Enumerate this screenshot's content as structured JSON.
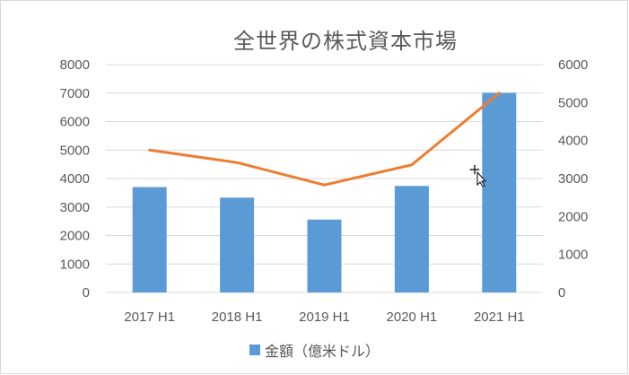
{
  "chart_data": {
    "type": "bar",
    "title": "全世界の株式資本市場",
    "categories": [
      "2017 H1",
      "2018 H1",
      "2019 H1",
      "2020 H1",
      "2021 H1"
    ],
    "series": [
      {
        "name": "金額（億米ドル）",
        "type": "bar",
        "axis": "left",
        "color": "#5b9bd5",
        "values": [
          3700,
          3330,
          2560,
          3740,
          7010
        ]
      },
      {
        "type": "line",
        "axis": "right",
        "color": "#ed7d31",
        "values": [
          3750,
          3420,
          2830,
          3360,
          5250
        ]
      }
    ],
    "ylim_left": [
      0,
      8000
    ],
    "ylim_right": [
      0,
      6000
    ],
    "yticks_left": [
      "0",
      "1000",
      "2000",
      "3000",
      "4000",
      "5000",
      "6000",
      "7000",
      "8000"
    ],
    "yticks_right": [
      "0",
      "1000",
      "2000",
      "3000",
      "4000",
      "5000",
      "6000"
    ],
    "grid": true,
    "legend_position": "bottom"
  }
}
